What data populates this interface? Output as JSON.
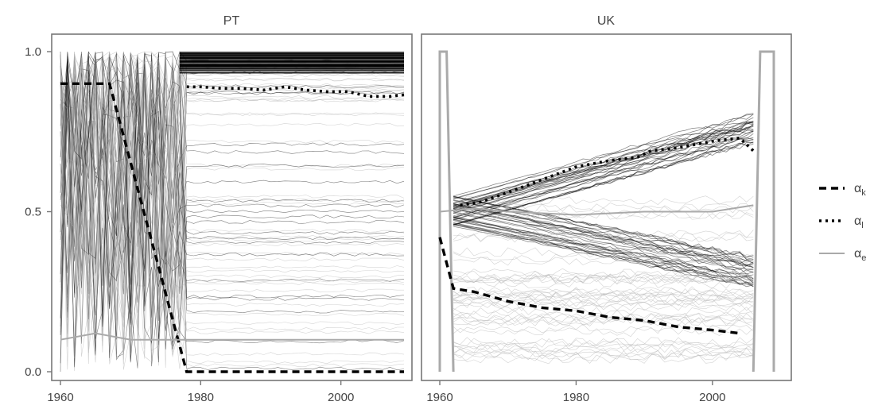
{
  "chart_data": [
    {
      "type": "line",
      "title": "PT",
      "xlim": [
        1960,
        2009
      ],
      "ylim": [
        0.0,
        1.0
      ],
      "x_ticks": [
        1960,
        1980,
        2000
      ],
      "x_tick_labels": [
        "1960",
        "1980",
        "2000"
      ],
      "y_ticks": [
        0.0,
        0.5,
        1.0
      ],
      "y_tick_labels": [
        "0.0",
        "0.5",
        "1.0"
      ],
      "grid": false,
      "series": [
        {
          "name": "αk",
          "style": "dashed",
          "color": "#000000",
          "x": [
            1960,
            1961,
            1962,
            1963,
            1964,
            1965,
            1966,
            1967,
            1978,
            1985,
            1995,
            2009
          ],
          "values": [
            0.9,
            0.9,
            0.9,
            0.9,
            0.9,
            0.9,
            0.9,
            0.9,
            0.0,
            0.0,
            0.0,
            0.0
          ]
        },
        {
          "name": "αl",
          "style": "dotted",
          "color": "#000000",
          "x": [
            1978,
            1980,
            1983,
            1986,
            1989,
            1992,
            1995,
            1998,
            2001,
            2004,
            2007,
            2009
          ],
          "values": [
            0.89,
            0.89,
            0.885,
            0.885,
            0.88,
            0.89,
            0.88,
            0.875,
            0.875,
            0.86,
            0.86,
            0.865
          ]
        },
        {
          "name": "αe",
          "style": "solid",
          "color": "#aaaaaa",
          "x": [
            1960,
            1965,
            1970,
            1975,
            1980,
            1990,
            2000,
            2009
          ],
          "values": [
            0.1,
            0.12,
            0.1,
            0.1,
            0.1,
            0.1,
            0.1,
            0.1
          ]
        }
      ]
    },
    {
      "type": "line",
      "title": "UK",
      "xlim": [
        1960,
        2009
      ],
      "ylim": [
        0.0,
        1.0
      ],
      "x_ticks": [
        1960,
        1980,
        2000
      ],
      "x_tick_labels": [
        "1960",
        "1980",
        "2000"
      ],
      "y_ticks": [
        0.0,
        0.5,
        1.0
      ],
      "grid": false,
      "series": [
        {
          "name": "αk",
          "style": "dashed",
          "color": "#000000",
          "x": [
            1960,
            1962,
            1965,
            1970,
            1975,
            1980,
            1985,
            1990,
            1995,
            2000,
            2004
          ],
          "values": [
            0.42,
            0.26,
            0.25,
            0.22,
            0.2,
            0.19,
            0.17,
            0.16,
            0.14,
            0.13,
            0.12
          ]
        },
        {
          "name": "αl",
          "style": "dotted",
          "color": "#000000",
          "x": [
            1963,
            1966,
            1970,
            1975,
            1980,
            1985,
            1989,
            1991,
            1995,
            2000,
            2004,
            2006
          ],
          "values": [
            0.52,
            0.53,
            0.56,
            0.6,
            0.64,
            0.66,
            0.67,
            0.69,
            0.7,
            0.72,
            0.73,
            0.69
          ]
        },
        {
          "name": "αe",
          "style": "solid",
          "color": "#aaaaaa",
          "x": [
            1960,
            1965,
            1970,
            1980,
            1990,
            2000,
            2006
          ],
          "values": [
            0.5,
            0.51,
            0.5,
            0.49,
            0.5,
            0.5,
            0.52
          ]
        }
      ]
    }
  ],
  "legend": {
    "placement": "right",
    "items": [
      {
        "base": "α",
        "sub": "k",
        "style": "dashed",
        "color": "#000000"
      },
      {
        "base": "α",
        "sub": "l",
        "style": "dotted",
        "color": "#000000"
      },
      {
        "base": "α",
        "sub": "e",
        "style": "solid",
        "color": "#aaaaaa"
      }
    ]
  }
}
